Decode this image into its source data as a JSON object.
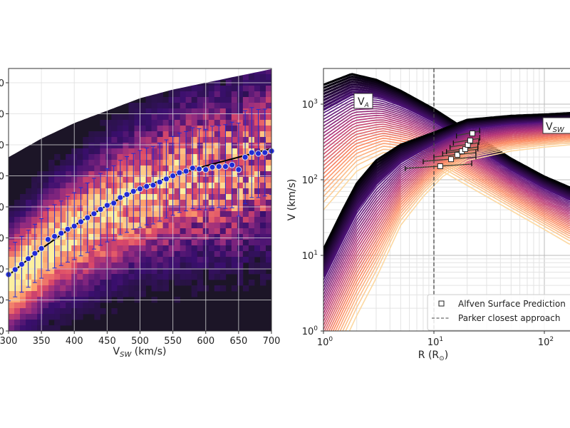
{
  "chart_data": [
    {
      "type": "heatmap",
      "xlabel": "V",
      "xlabel_sub": "SW",
      "xlabel_unit": " (km/s)",
      "ylabel": "",
      "xlim": [
        300,
        700
      ],
      "x_ticks": [
        "300",
        "350",
        "400",
        "450",
        "500",
        "550",
        "600",
        "650",
        "700"
      ],
      "y_tick_labels_visible": [
        "0",
        "0",
        "0",
        "0",
        "0",
        "0",
        "0",
        "0",
        "0"
      ],
      "grid": true,
      "colormap": "inferno",
      "binned_means": {
        "x": [
          300,
          310,
          320,
          330,
          340,
          350,
          360,
          370,
          380,
          390,
          400,
          410,
          420,
          430,
          440,
          450,
          460,
          470,
          480,
          490,
          500,
          510,
          520,
          530,
          540,
          550,
          560,
          570,
          580,
          590,
          600,
          610,
          620,
          630,
          640,
          650,
          660,
          670,
          680,
          690,
          700
        ],
        "y": [
          1.82,
          1.98,
          2.15,
          2.33,
          2.5,
          2.66,
          2.95,
          3.05,
          3.15,
          3.28,
          3.38,
          3.52,
          3.65,
          3.78,
          3.92,
          4.05,
          4.12,
          4.3,
          4.4,
          4.5,
          4.58,
          4.66,
          4.7,
          4.8,
          4.9,
          5.0,
          5.1,
          5.15,
          5.25,
          5.22,
          5.2,
          5.28,
          5.3,
          5.3,
          5.35,
          5.2,
          5.6,
          5.75,
          5.72,
          5.75,
          5.8
        ],
        "yerr": [
          0.85,
          0.88,
          0.9,
          0.92,
          0.94,
          0.96,
          1.0,
          1.02,
          1.04,
          1.06,
          1.08,
          1.1,
          1.12,
          1.14,
          1.16,
          1.18,
          1.2,
          1.2,
          1.22,
          1.22,
          1.24,
          1.24,
          1.25,
          1.26,
          1.26,
          1.27,
          1.28,
          1.28,
          1.3,
          1.3,
          1.3,
          1.32,
          1.32,
          1.35,
          1.38,
          1.5,
          1.5,
          1.45,
          1.42,
          1.4,
          1.4
        ],
        "marker_color": "#1f2bd6"
      },
      "fit_curve": {
        "x": [
          300,
          350,
          400,
          450,
          500,
          550,
          600,
          650,
          700
        ],
        "y": [
          1.8,
          2.65,
          3.4,
          4.05,
          4.6,
          5.0,
          5.32,
          5.6,
          5.88
        ],
        "color": "#000000"
      },
      "data_region_top": {
        "x": [
          300,
          350,
          400,
          450,
          500,
          550,
          600,
          650,
          700
        ],
        "y": [
          5.6,
          6.2,
          6.7,
          7.1,
          7.5,
          7.78,
          8.0,
          8.22,
          8.44
        ]
      }
    },
    {
      "type": "line",
      "xscale": "log",
      "yscale": "log",
      "xlabel": "R (R",
      "xlabel_symbol": "⊙",
      "xlabel_end": ")",
      "ylabel": "V (km/s)",
      "xlim": [
        1,
        170
      ],
      "ylim": [
        1,
        3000
      ],
      "x_ticks": [
        {
          "base": "10",
          "exp": "0"
        },
        {
          "base": "10",
          "exp": "1"
        },
        {
          "base": "10",
          "exp": "2"
        }
      ],
      "y_ticks": [
        {
          "base": "10",
          "exp": "0"
        },
        {
          "base": "10",
          "exp": "1"
        },
        {
          "base": "10",
          "exp": "2"
        },
        {
          "base": "10",
          "exp": "3"
        }
      ],
      "grid": true,
      "colormap": "magma",
      "curve_families": {
        "va": {
          "label": "V",
          "label_sub": "A",
          "darkest": [
            [
              1,
              1800
            ],
            [
              1.8,
              2500
            ],
            [
              3,
              2100
            ],
            [
              5,
              1500
            ],
            [
              10,
              860
            ],
            [
              20,
              450
            ],
            [
              50,
              190
            ],
            [
              100,
              110
            ],
            [
              170,
              79
            ]
          ],
          "lightest": [
            [
              1,
              40
            ],
            [
              2,
              130
            ],
            [
              3.5,
              200
            ],
            [
              6,
              190
            ],
            [
              10,
              150
            ],
            [
              30,
              60
            ],
            [
              100,
              22
            ],
            [
              170,
              14
            ]
          ]
        },
        "vsw": {
          "label": "V",
          "label_sub": "SW",
          "darkest": [
            [
              1,
              12
            ],
            [
              1.5,
              40
            ],
            [
              2,
              89
            ],
            [
              3,
              180
            ],
            [
              5,
              290
            ],
            [
              10,
              420
            ],
            [
              20,
              620
            ],
            [
              50,
              700
            ],
            [
              100,
              730
            ],
            [
              170,
              760
            ]
          ],
          "lightest": [
            [
              1.6,
              0.8
            ],
            [
              2,
              1.6
            ],
            [
              3,
              5
            ],
            [
              5,
              25
            ],
            [
              8,
              60
            ],
            [
              12,
              110
            ],
            [
              20,
              180
            ],
            [
              50,
              240
            ],
            [
              100,
              270
            ],
            [
              170,
              290
            ]
          ]
        }
      },
      "alfven_surface_prediction": {
        "R": [
          11.4,
          14.3,
          16.3,
          17.9,
          19.2,
          20.3,
          21.3,
          22.3
        ],
        "V": [
          151,
          187,
          214,
          238,
          254,
          290,
          330,
          410
        ],
        "R_range": [
          [
            5.5,
            22
          ],
          [
            8,
            24
          ],
          [
            10,
            24
          ],
          [
            12,
            25
          ],
          [
            13,
            25
          ],
          [
            14,
            25.5
          ],
          [
            15,
            26
          ],
          [
            16,
            26
          ]
        ]
      },
      "parker_closest_approach_R": 10,
      "legend": {
        "position": "bottom-right",
        "entries": [
          "Alfven Surface Prediction",
          "Parker closest approach"
        ]
      }
    }
  ]
}
